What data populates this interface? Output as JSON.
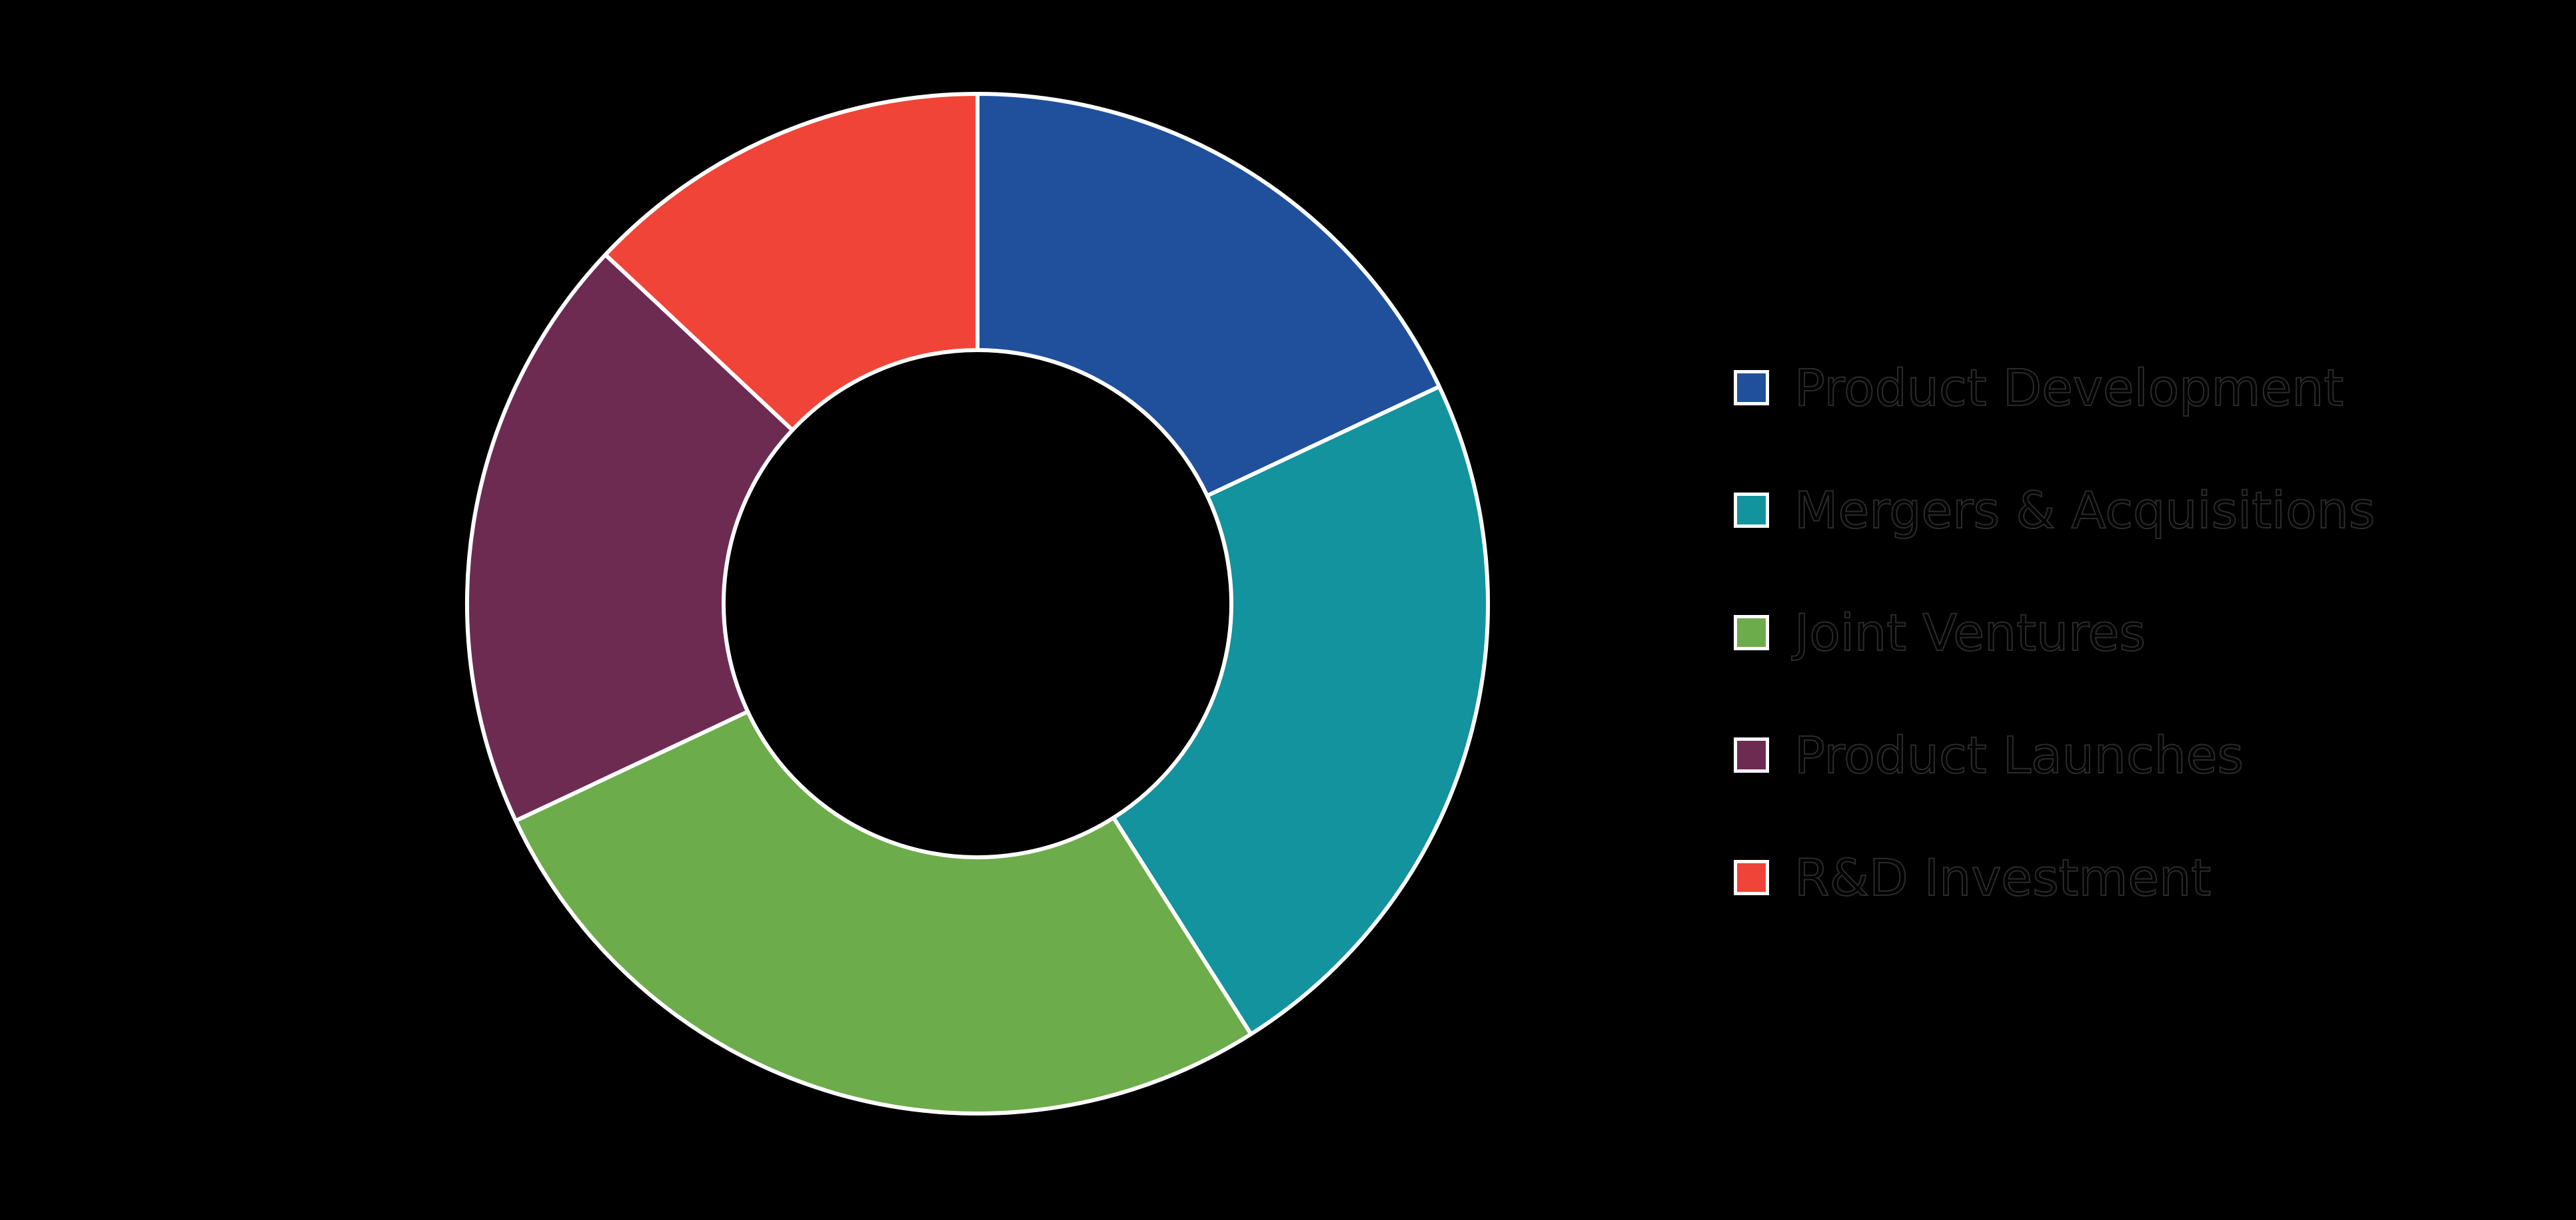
{
  "figure": {
    "background_color": "#000000",
    "title": ""
  },
  "chart_data": {
    "type": "pie",
    "subtype": "donut",
    "title": "",
    "start_angle_deg": 90,
    "direction": "clockwise",
    "donut_hole_ratio": 0.5,
    "categories": [
      "Product Development",
      "Mergers & Acquisitions",
      "Joint Ventures",
      "Product Launches",
      "R&D Investment"
    ],
    "values": [
      18,
      23,
      27,
      19,
      13
    ],
    "values_unit": "percent",
    "series_colors": [
      "#20509B",
      "#12939D",
      "#6DAC4B",
      "#6E2B52",
      "#F04438"
    ],
    "wedge_border_color": "#FFFFFF",
    "slice_labels_shown": false,
    "legend_position": "right-center"
  },
  "legend": {
    "marker_shape": "square",
    "marker_border_color": "#FFFFFF",
    "text_color": "#000000",
    "items": [
      {
        "label": "Product Development",
        "color": "#20509B"
      },
      {
        "label": "Mergers & Acquisitions",
        "color": "#12939D"
      },
      {
        "label": "Joint Ventures",
        "color": "#6DAC4B"
      },
      {
        "label": "Product Launches",
        "color": "#6E2B52"
      },
      {
        "label": "R&D Investment",
        "color": "#F04438"
      }
    ]
  }
}
